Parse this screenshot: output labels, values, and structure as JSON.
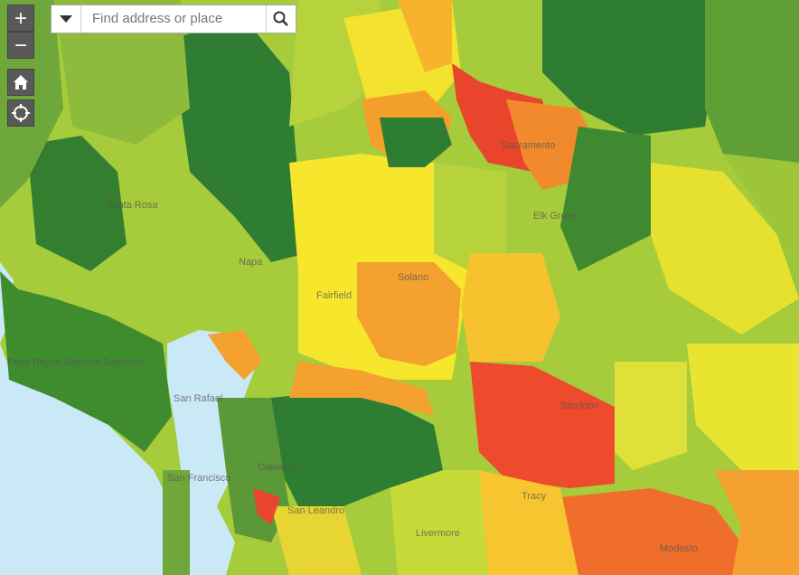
{
  "controls": {
    "zoom_in": "+",
    "zoom_out": "−"
  },
  "search": {
    "placeholder": "Find address or place"
  },
  "map": {
    "labels": [
      "Santa Rosa",
      "Napa",
      "Fairfield",
      "Solano",
      "Sacramento",
      "Elk Grove",
      "San Rafael",
      "San Francisco",
      "Oakland",
      "San Leandro",
      "Livermore",
      "Stockton",
      "Tracy",
      "Modesto",
      "Point Reyes National Seashore"
    ]
  }
}
